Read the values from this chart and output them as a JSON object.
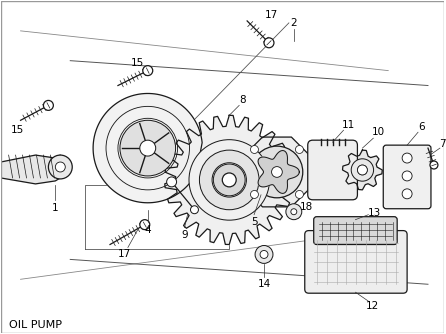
{
  "title": "OIL PUMP",
  "background_color": "#ffffff",
  "line_color": "#1a1a1a",
  "text_color": "#000000",
  "fig_width": 4.46,
  "fig_height": 3.34,
  "dpi": 100,
  "footnote": "OIL PUMP"
}
